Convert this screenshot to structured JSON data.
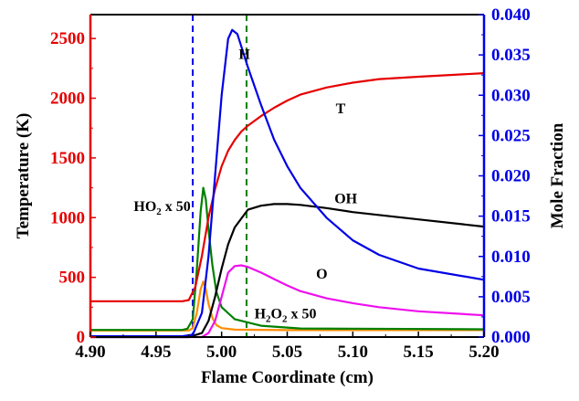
{
  "chart_data": {
    "type": "line",
    "xlabel": "Flame Coordinate (cm)",
    "ylabel_left": "Temperature (K)",
    "ylabel_right": "Mole Fraction",
    "xlim": [
      4.9,
      5.2
    ],
    "ylim_left": [
      0,
      2700
    ],
    "ylim_right": [
      0,
      0.04
    ],
    "x_ticks": [
      "4.90",
      "4.95",
      "5.00",
      "5.05",
      "5.10",
      "5.15",
      "5.20"
    ],
    "y_left_ticks": [
      "0",
      "500",
      "1000",
      "1500",
      "2000",
      "2500"
    ],
    "y_right_ticks": [
      "0.000",
      "0.005",
      "0.010",
      "0.015",
      "0.020",
      "0.025",
      "0.030",
      "0.035",
      "0.040"
    ],
    "vlines": [
      {
        "x": 4.978,
        "color": "#0000e6"
      },
      {
        "x": 5.019,
        "color": "#008000"
      }
    ],
    "series": [
      {
        "name": "T",
        "axis": "left",
        "color": "#e60000",
        "x": [
          4.9,
          4.97,
          4.975,
          4.98,
          4.985,
          4.99,
          4.995,
          5.0,
          5.005,
          5.01,
          5.015,
          5.02,
          5.03,
          5.04,
          5.05,
          5.06,
          5.08,
          5.1,
          5.12,
          5.15,
          5.2
        ],
        "y": [
          300,
          300,
          310,
          420,
          680,
          1000,
          1240,
          1430,
          1560,
          1650,
          1720,
          1770,
          1850,
          1920,
          1980,
          2030,
          2090,
          2130,
          2160,
          2180,
          2210
        ]
      },
      {
        "name": "H",
        "axis": "right",
        "color": "#0000e6",
        "x": [
          4.9,
          4.97,
          4.978,
          4.985,
          4.99,
          4.995,
          5.0,
          5.005,
          5.008,
          5.012,
          5.02,
          5.03,
          5.04,
          5.05,
          5.06,
          5.08,
          5.1,
          5.12,
          5.15,
          5.2
        ],
        "y": [
          0.0001,
          0.0001,
          0.0003,
          0.003,
          0.01,
          0.02,
          0.03,
          0.037,
          0.0381,
          0.0376,
          0.0335,
          0.0288,
          0.0245,
          0.0212,
          0.0185,
          0.0148,
          0.012,
          0.0102,
          0.0085,
          0.0071
        ]
      },
      {
        "name": "OH",
        "axis": "right",
        "color": "#000000",
        "x": [
          4.9,
          4.975,
          4.985,
          4.99,
          4.995,
          5.0,
          5.005,
          5.01,
          5.02,
          5.03,
          5.04,
          5.05,
          5.06,
          5.08,
          5.1,
          5.15,
          5.2
        ],
        "y": [
          0.0,
          0.0,
          0.0005,
          0.002,
          0.005,
          0.0085,
          0.0115,
          0.0136,
          0.0158,
          0.0163,
          0.0165,
          0.0165,
          0.0164,
          0.016,
          0.0155,
          0.0146,
          0.0137
        ]
      },
      {
        "name": "O",
        "axis": "right",
        "color": "#ee10ee",
        "x": [
          4.9,
          4.985,
          4.99,
          4.995,
          5.0,
          5.005,
          5.01,
          5.015,
          5.02,
          5.03,
          5.04,
          5.05,
          5.06,
          5.08,
          5.1,
          5.12,
          5.15,
          5.2
        ],
        "y": [
          0.0,
          0.0,
          0.0005,
          0.002,
          0.005,
          0.008,
          0.0088,
          0.0089,
          0.0087,
          0.008,
          0.0072,
          0.0064,
          0.0057,
          0.0048,
          0.0042,
          0.0037,
          0.0032,
          0.0027
        ]
      },
      {
        "name": "HO2 x 50",
        "axis": "left",
        "color": "#008000",
        "x": [
          4.9,
          4.97,
          4.974,
          4.978,
          4.981,
          4.984,
          4.986,
          4.988,
          4.99,
          4.993,
          4.996,
          5.0,
          5.01,
          5.03,
          5.06,
          5.2
        ],
        "y": [
          60,
          60,
          70,
          150,
          550,
          1050,
          1250,
          1150,
          900,
          600,
          380,
          250,
          150,
          95,
          72,
          65
        ]
      },
      {
        "name": "H2O2 x 50",
        "axis": "left",
        "color": "#ff8c00",
        "x": [
          4.9,
          4.975,
          4.978,
          4.981,
          4.984,
          4.986,
          4.988,
          4.99,
          4.993,
          4.996,
          5.0,
          5.01,
          5.05,
          5.2
        ],
        "y": [
          55,
          55,
          75,
          200,
          400,
          465,
          400,
          280,
          160,
          100,
          75,
          62,
          58,
          58
        ]
      }
    ],
    "annotations": [
      {
        "text": "H",
        "x": 5.013,
        "y_left": 2330
      },
      {
        "text": "T",
        "x": 5.087,
        "y_left": 1875
      },
      {
        "text": "OH",
        "x": 5.086,
        "y_left": 1120
      },
      {
        "text": "O",
        "x": 5.072,
        "y_left": 490
      },
      {
        "text": "HO",
        "sub": "2",
        "suffix": " x 50",
        "x": 4.933,
        "y_left": 1055
      },
      {
        "text": "H",
        "sub": "2",
        "mid": "O",
        "sub2": "2",
        "suffix": " x 50",
        "x": 5.025,
        "y_left": 155
      }
    ],
    "grid": false
  }
}
